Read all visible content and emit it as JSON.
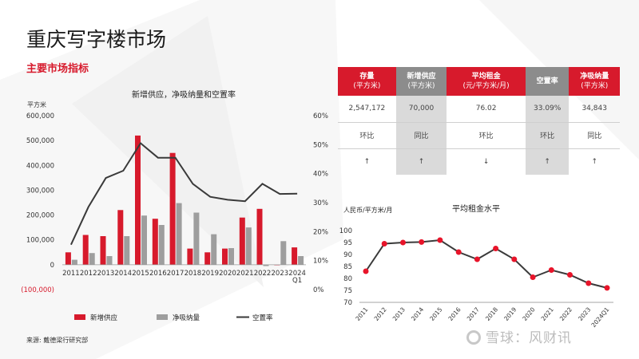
{
  "header": {
    "title": "重庆写字楼市场",
    "subtitle": "主要市场指标"
  },
  "footer": {
    "source": "来源: 戴德梁行研究部",
    "watermark": "雪球：风财讯"
  },
  "metrics_table": {
    "headers": [
      {
        "line1": "存量",
        "line2": "(平方米)",
        "color": "red"
      },
      {
        "line1": "新增供应",
        "line2": "(平方米)",
        "color": "grey"
      },
      {
        "line1": "平均租金",
        "line2": "(元/平方米/月)",
        "color": "red"
      },
      {
        "line1": "空置率",
        "line2": "",
        "color": "grey"
      },
      {
        "line1": "净吸纳量",
        "line2": "(平方米)",
        "color": "red"
      }
    ],
    "values": [
      "2,547,172",
      "70,000",
      "76.02",
      "33.09%",
      "34,843"
    ],
    "comparisons": [
      "环比",
      "同比",
      "环比",
      "环比",
      "同比"
    ],
    "trends": [
      "↑",
      "↑",
      "↓",
      "↑",
      "↑"
    ]
  },
  "chart_data": [
    {
      "type": "bar",
      "title": "新增供应，净吸纳量和空置率",
      "ylabel": "平方米",
      "categories": [
        "2011",
        "2012",
        "2013",
        "2014",
        "2015",
        "2016",
        "2017",
        "2018",
        "2019",
        "2020",
        "2021",
        "2022",
        "2023",
        "2024 Q1"
      ],
      "ylim": [
        -100000,
        600000
      ],
      "y_ticks": [
        "(100,000)",
        "0",
        "100,000",
        "200,000",
        "300,000",
        "400,000",
        "500,000",
        "600,000"
      ],
      "y2lim": [
        0,
        0.6
      ],
      "y2_ticks": [
        "0%",
        "10%",
        "20%",
        "30%",
        "40%",
        "50%",
        "60%"
      ],
      "series": [
        {
          "name": "新增供应",
          "type": "bar",
          "color": "#d71a2c",
          "values": [
            50000,
            120000,
            115000,
            220000,
            520000,
            185000,
            450000,
            65000,
            50000,
            65000,
            190000,
            225000,
            0,
            70000
          ]
        },
        {
          "name": "净吸纳量",
          "type": "bar",
          "color": "#9e9e9e",
          "values": [
            20000,
            47000,
            35000,
            115000,
            198000,
            160000,
            248000,
            210000,
            123000,
            67000,
            150000,
            -5000,
            95000,
            34843
          ]
        },
        {
          "name": "空置率",
          "type": "line",
          "axis": "right",
          "color": "#3a3a3a",
          "values": [
            0.155,
            0.285,
            0.385,
            0.41,
            0.505,
            0.455,
            0.455,
            0.365,
            0.32,
            0.31,
            0.305,
            0.365,
            0.33,
            0.331
          ]
        }
      ],
      "legend_position": "bottom"
    },
    {
      "type": "line",
      "title": "平均租金水平",
      "ylabel": "人民币/平方米/月",
      "categories": [
        "2011",
        "2012",
        "2013",
        "2014",
        "2015",
        "2016",
        "2017",
        "2018",
        "2019",
        "2020",
        "2021",
        "2022",
        "2023",
        "2024Q1"
      ],
      "ylim": [
        70,
        100
      ],
      "y_ticks": [
        "70",
        "75",
        "80",
        "85",
        "90",
        "95",
        "100"
      ],
      "series": [
        {
          "name": "平均租金",
          "color": "#3a3a3a",
          "marker_color": "#e8142a",
          "values": [
            83,
            94.5,
            95,
            95.2,
            96,
            91,
            88,
            92.5,
            88,
            80.5,
            83.5,
            81.5,
            78,
            76.02
          ]
        }
      ]
    }
  ]
}
